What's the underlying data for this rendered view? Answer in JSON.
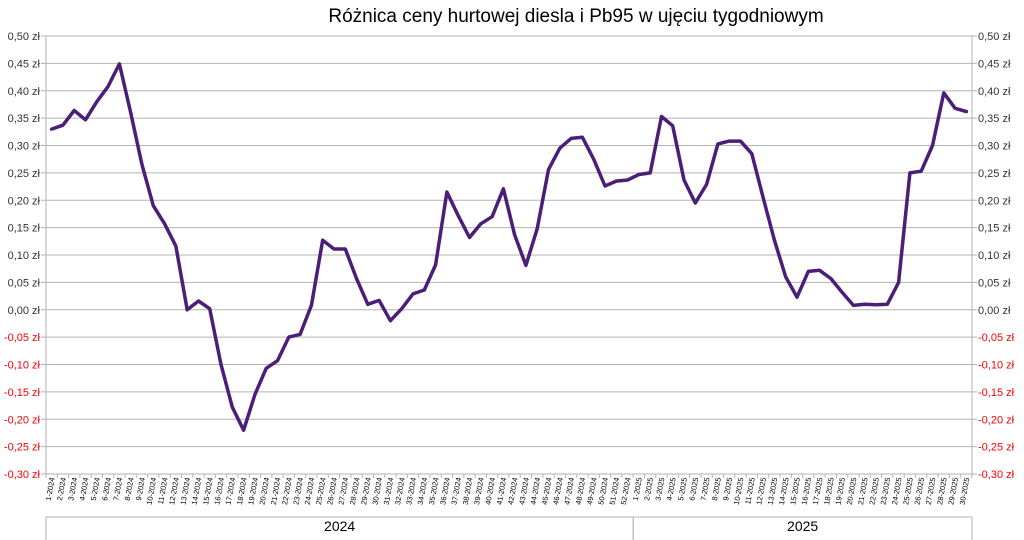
{
  "chart_data": {
    "type": "line",
    "title": "Różnica ceny hurtowej diesla i Pb95 w ujęciu tygodniowym",
    "xlabel": "",
    "ylabel": "",
    "ylim": [
      -0.3,
      0.5
    ],
    "y_ticks": [
      0.5,
      0.45,
      0.4,
      0.35,
      0.3,
      0.25,
      0.2,
      0.15,
      0.1,
      0.05,
      0.0,
      -0.05,
      -0.1,
      -0.15,
      -0.2,
      -0.25,
      -0.3
    ],
    "y_tick_labels": [
      "0,50 zł",
      "0,45 zł",
      "0,40 zł",
      "0,35 zł",
      "0,30 zł",
      "0,25 zł",
      "0,20 zł",
      "0,15 zł",
      "0,10 zł",
      "0,05 zł",
      "0,00 zł",
      "-0,05 zł",
      "-0,10 zł",
      "-0,15 zł",
      "-0,20 zł",
      "-0,25 zł",
      "-0,30 zł"
    ],
    "negative_label_color": "#ff0000",
    "positive_label_color": "#333333",
    "grid": true,
    "legend": "none",
    "line_color": "#4b1e78",
    "year_groups": [
      {
        "label": "2024",
        "from_index": 0,
        "to_index": 51
      },
      {
        "label": "2025",
        "from_index": 52,
        "to_index": 81
      }
    ],
    "categories": [
      "1-2024",
      "2-2024",
      "3-2024",
      "4-2024",
      "5-2024",
      "6-2024",
      "7-2024",
      "8-2024",
      "9-2024",
      "10-2024",
      "11-2024",
      "12-2024",
      "13-2024",
      "14-2024",
      "15-2024",
      "16-2024",
      "17-2024",
      "18-2024",
      "19-2024",
      "20-2024",
      "21-2024",
      "22-2024",
      "23-2024",
      "24-2024",
      "25-2024",
      "26-2024",
      "27-2024",
      "28-2024",
      "29-2024",
      "30-2024",
      "31-2024",
      "32-2024",
      "33-2024",
      "34-2024",
      "35-2024",
      "36-2024",
      "37-2024",
      "38-2024",
      "39-2024",
      "40-2024",
      "41-2024",
      "42-2024",
      "43-2024",
      "44-2024",
      "45-2024",
      "46-2024",
      "47-2024",
      "48-2024",
      "49-2024",
      "50-2024",
      "51-2024",
      "52-2024",
      "1-2025",
      "2-2025",
      "3-2025",
      "4-2025",
      "5-2025",
      "6-2025",
      "7-2025",
      "8-2025",
      "9-2025",
      "10-2025",
      "11-2025",
      "12-2025",
      "13-2025",
      "14-2025",
      "15-2025",
      "16-2025",
      "17-2025",
      "18-2025",
      "19-2025",
      "20-2025",
      "21-2025",
      "22-2025",
      "23-2025",
      "24-2025",
      "25-2025",
      "26-2025",
      "27-2025",
      "28-2025",
      "29-2025",
      "30-2025"
    ],
    "series": [
      {
        "values": [
          0.33,
          0.337,
          0.364,
          0.347,
          0.38,
          0.408,
          0.449,
          0.36,
          0.265,
          0.19,
          0.157,
          0.116,
          0.0,
          0.016,
          0.002,
          -0.1,
          -0.178,
          -0.22,
          -0.155,
          -0.107,
          -0.093,
          -0.05,
          -0.045,
          0.008,
          0.127,
          0.111,
          0.111,
          0.057,
          0.01,
          0.017,
          -0.02,
          0.002,
          0.029,
          0.036,
          0.082,
          0.215,
          0.172,
          0.132,
          0.157,
          0.17,
          0.221,
          0.137,
          0.081,
          0.148,
          0.256,
          0.295,
          0.313,
          0.315,
          0.275,
          0.226,
          0.235,
          0.237,
          0.247,
          0.25,
          0.353,
          0.336,
          0.237,
          0.195,
          0.229,
          0.303,
          0.308,
          0.308,
          0.285,
          0.205,
          0.127,
          0.06,
          0.023,
          0.07,
          0.072,
          0.057,
          0.032,
          0.008,
          0.01,
          0.009,
          0.01,
          0.05,
          0.25,
          0.253,
          0.3,
          0.396,
          0.368,
          0.362
        ]
      }
    ]
  }
}
